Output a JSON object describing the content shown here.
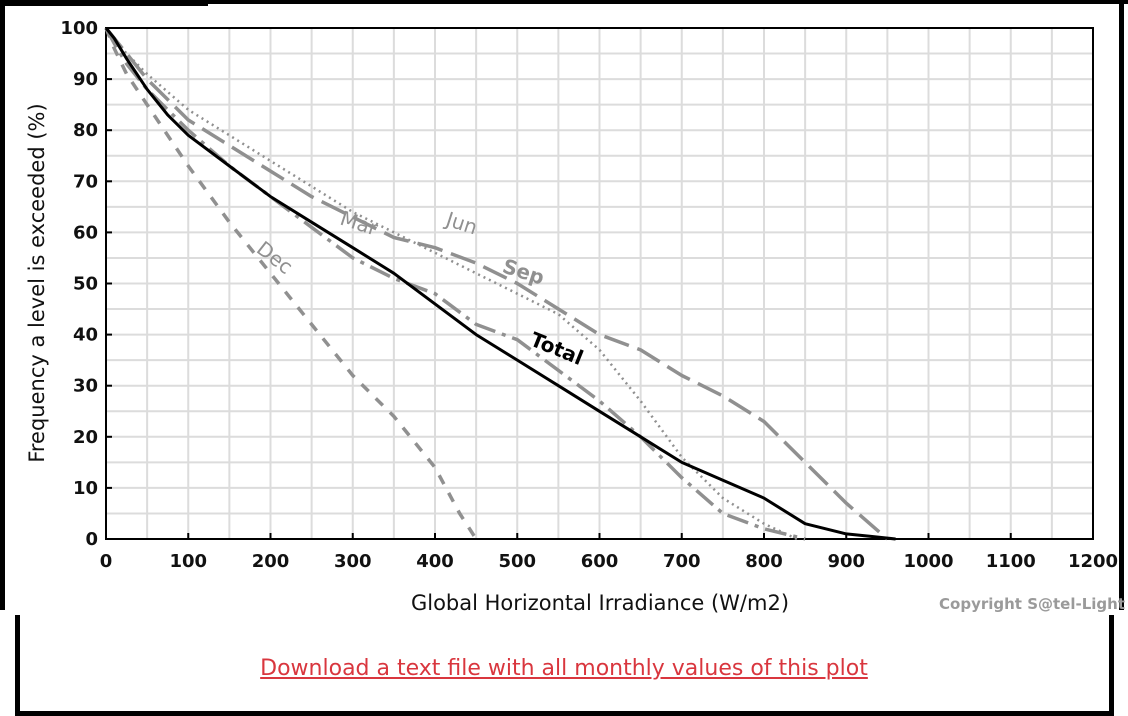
{
  "chart_data": {
    "type": "line",
    "xlabel": "Global Horizontal Irradiance (W/m2)",
    "ylabel": "Frequency a level is exceeded (%)",
    "xlim": [
      0,
      1200
    ],
    "ylim": [
      0,
      100
    ],
    "xticks": [
      0,
      100,
      200,
      300,
      400,
      500,
      600,
      700,
      800,
      900,
      1000,
      1100,
      1200
    ],
    "yticks": [
      0,
      10,
      20,
      30,
      40,
      50,
      60,
      70,
      80,
      90,
      100
    ],
    "grid": true,
    "copyright": "Copyright S@tel-Light",
    "series": [
      {
        "name": "Total",
        "color": "#000000",
        "style": "solid",
        "x": [
          0,
          10,
          25,
          50,
          75,
          100,
          150,
          200,
          250,
          300,
          350,
          400,
          450,
          500,
          550,
          600,
          650,
          700,
          750,
          800,
          850,
          900,
          930,
          960
        ],
        "y": [
          100,
          98,
          94,
          88,
          83,
          79,
          73,
          67,
          62,
          57,
          52,
          46,
          40,
          35,
          30,
          25,
          20,
          15,
          11.5,
          8,
          3,
          1,
          0.5,
          0
        ]
      },
      {
        "name": "Jun",
        "color": "#909090",
        "style": "dotted",
        "x": [
          0,
          10,
          25,
          50,
          100,
          150,
          200,
          250,
          300,
          350,
          400,
          450,
          500,
          550,
          600,
          650,
          700,
          750,
          800,
          840
        ],
        "y": [
          100,
          98,
          95,
          91,
          84,
          79,
          74,
          69,
          64,
          60,
          56,
          52,
          48,
          44,
          37,
          27,
          16,
          8,
          3,
          0
        ]
      },
      {
        "name": "Mar",
        "color": "#909090",
        "style": "dashdot",
        "x": [
          0,
          10,
          25,
          50,
          100,
          150,
          200,
          250,
          300,
          350,
          400,
          450,
          500,
          550,
          600,
          650,
          700,
          750,
          800,
          850
        ],
        "y": [
          100,
          97,
          93,
          88,
          80,
          73,
          67,
          61,
          55,
          51,
          48,
          42,
          39,
          33,
          27,
          20,
          12,
          5,
          2,
          0
        ]
      },
      {
        "name": "Sep",
        "color": "#909090",
        "style": "longdash",
        "x": [
          0,
          10,
          25,
          50,
          100,
          150,
          200,
          250,
          300,
          350,
          400,
          450,
          500,
          550,
          600,
          650,
          700,
          750,
          800,
          850,
          900,
          950
        ],
        "y": [
          100,
          98,
          95,
          90,
          82,
          77,
          72,
          67,
          63,
          59,
          57,
          54,
          50,
          45,
          40,
          37,
          32,
          28,
          23,
          15,
          7,
          0
        ]
      },
      {
        "name": "Dec",
        "color": "#909090",
        "style": "dashed",
        "x": [
          0,
          10,
          25,
          50,
          100,
          150,
          200,
          250,
          300,
          350,
          400,
          430,
          450
        ],
        "y": [
          100,
          96,
          91,
          85,
          73,
          62,
          52,
          42,
          32,
          24,
          14,
          5,
          0
        ]
      }
    ]
  },
  "footer": {
    "download_label": "Download a text file with all monthly values of this plot"
  }
}
